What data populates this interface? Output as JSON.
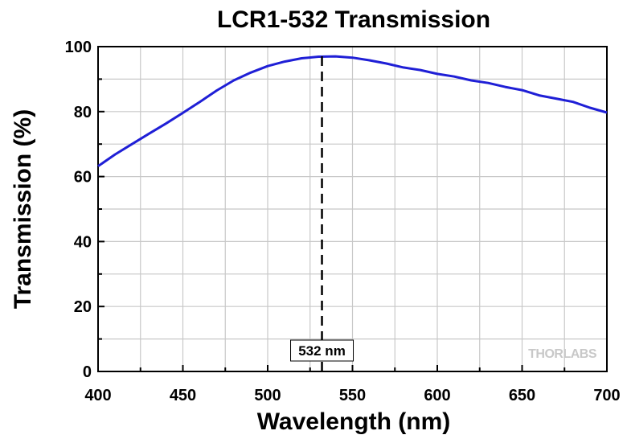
{
  "chart_data": {
    "type": "line",
    "title": "LCR1-532 Transmission",
    "xlabel": "Wavelength (nm)",
    "ylabel": "Transmission (%)",
    "xlim": [
      400,
      700
    ],
    "ylim": [
      0,
      100
    ],
    "xticks": [
      400,
      450,
      500,
      550,
      600,
      650,
      700
    ],
    "yticks": [
      0,
      20,
      40,
      60,
      80,
      100
    ],
    "grid": true,
    "series": [
      {
        "color": "#1f1fd6",
        "x": [
          400,
          410,
          420,
          430,
          440,
          450,
          460,
          470,
          480,
          490,
          500,
          510,
          520,
          530,
          540,
          550,
          560,
          570,
          580,
          590,
          600,
          610,
          620,
          630,
          640,
          650,
          660,
          670,
          680,
          690,
          700
        ],
        "y": [
          63.2,
          66.8,
          70.0,
          73.2,
          76.3,
          79.6,
          83.0,
          86.5,
          89.6,
          92.0,
          94.0,
          95.4,
          96.4,
          96.9,
          97.0,
          96.6,
          95.8,
          94.8,
          93.6,
          92.8,
          91.6,
          90.8,
          89.6,
          88.8,
          87.6,
          86.6,
          85.0,
          84.0,
          83.0,
          81.2,
          79.7
        ]
      }
    ],
    "annotations": [
      {
        "type": "vline",
        "x": 532,
        "style": "dashed",
        "label": "532 nm"
      }
    ],
    "logo": "THORLABS"
  }
}
